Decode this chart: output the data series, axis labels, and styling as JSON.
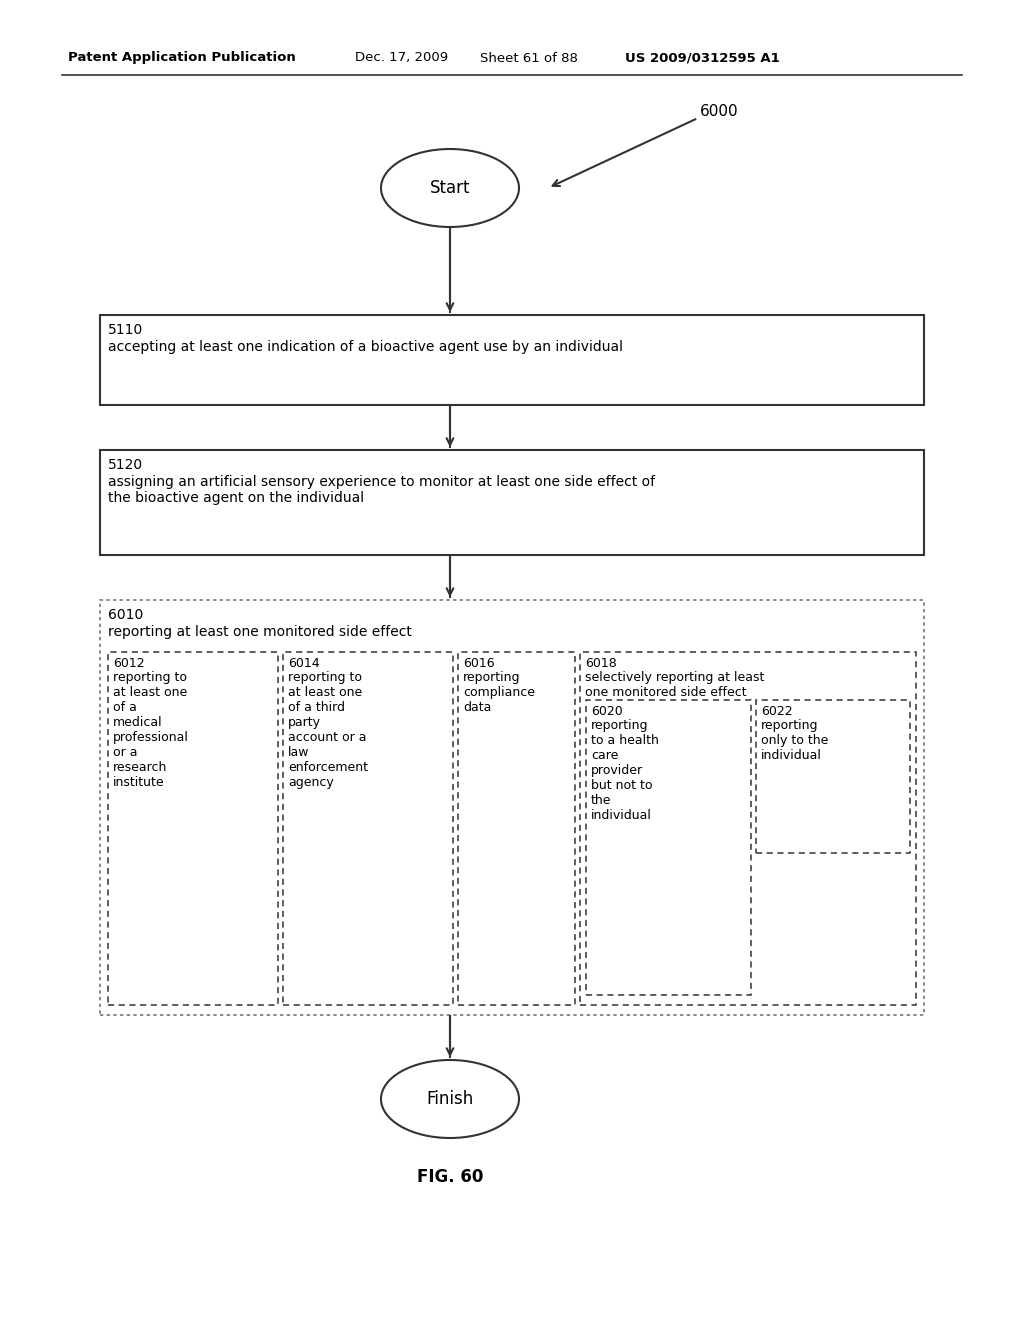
{
  "bg_color": "#ffffff",
  "header_text": "Patent Application Publication",
  "header_date": "Dec. 17, 2009",
  "header_sheet": "Sheet 61 of 88",
  "header_patent": "US 2009/0312595 A1",
  "fig_label": "FIG. 60",
  "ref_number": "6000",
  "start_label": "Start",
  "finish_label": "Finish",
  "box5110_id": "5110",
  "box5110_text": "accepting at least one indication of a bioactive agent use by an individual",
  "box5120_id": "5120",
  "box5120_text": "assigning an artificial sensory experience to monitor at least one side effect of\nthe bioactive agent on the individual",
  "box6010_id": "6010",
  "box6010_text": "reporting at least one monitored side effect",
  "box6012_id": "6012",
  "box6012_text": "reporting to\nat least one\nof a\nmedical\nprofessional\nor a\nresearch\ninstitute",
  "box6014_id": "6014",
  "box6014_text": "reporting to\nat least one\nof a third\nparty\naccount or a\nlaw\nenforcement\nagency",
  "box6016_id": "6016",
  "box6016_text": "reporting\ncompliance\ndata",
  "box6018_id": "6018",
  "box6018_text": "selectively reporting at least\none monitored side effect",
  "box6020_id": "6020",
  "box6020_text": "reporting\nto a health\ncare\nprovider\nbut not to\nthe\nindividual",
  "box6022_id": "6022",
  "box6022_text": "reporting\nonly to the\nindividual"
}
